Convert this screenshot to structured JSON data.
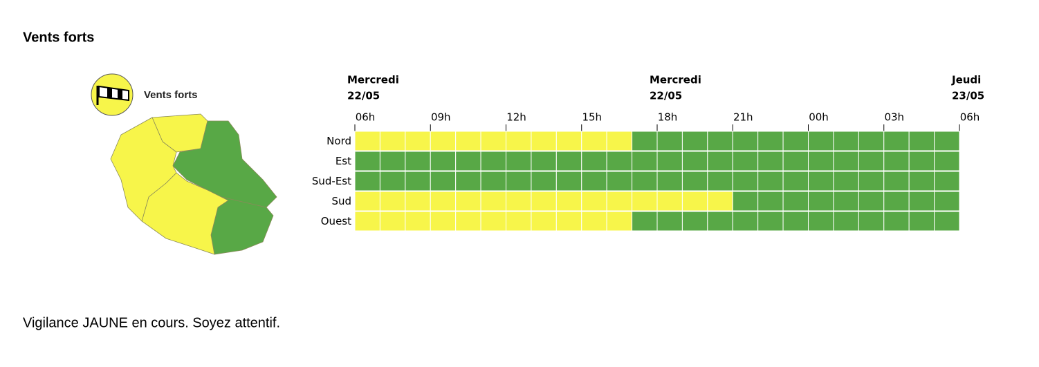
{
  "header": {
    "title": "Vents forts"
  },
  "legend": {
    "label": "Vents forts"
  },
  "timeline": {
    "ticks": [
      {
        "label": "06h",
        "day": "Mercredi",
        "date": "22/05"
      },
      {
        "label": "09h"
      },
      {
        "label": "12h"
      },
      {
        "label": "15h"
      },
      {
        "label": "18h",
        "day": "Mercredi",
        "date": "22/05"
      },
      {
        "label": "21h"
      },
      {
        "label": "00h"
      },
      {
        "label": "03h"
      },
      {
        "label": "06h",
        "day": "Jeudi",
        "date": "23/05"
      }
    ],
    "rows": [
      {
        "name": "Nord",
        "segments": [
          {
            "color": "#f7f54a",
            "hours": 11
          },
          {
            "color": "#58a846",
            "hours": 13
          }
        ]
      },
      {
        "name": "Est",
        "segments": [
          {
            "color": "#58a846",
            "hours": 24
          }
        ]
      },
      {
        "name": "Sud-Est",
        "segments": [
          {
            "color": "#58a846",
            "hours": 24
          }
        ]
      },
      {
        "name": "Sud",
        "segments": [
          {
            "color": "#f7f54a",
            "hours": 15
          },
          {
            "color": "#58a846",
            "hours": 9
          }
        ]
      },
      {
        "name": "Ouest",
        "segments": [
          {
            "color": "#f7f54a",
            "hours": 11
          },
          {
            "color": "#58a846",
            "hours": 13
          }
        ]
      }
    ]
  },
  "footer": {
    "message": "Vigilance JAUNE en cours. Soyez attentif."
  }
}
